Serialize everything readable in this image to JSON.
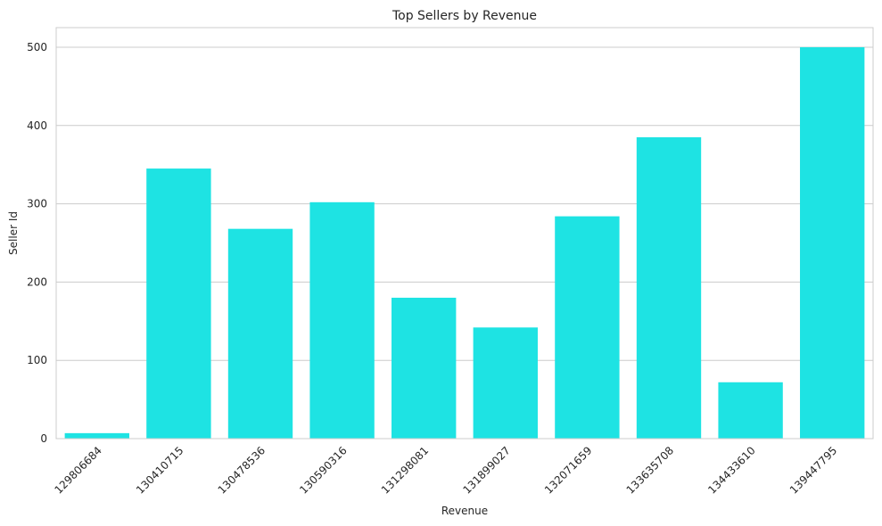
{
  "chart_data": {
    "type": "bar",
    "title": "Top Sellers by Revenue",
    "xlabel": "Revenue",
    "ylabel": "Seller Id",
    "categories": [
      "129806684",
      "130410715",
      "130478536",
      "130590316",
      "131298081",
      "131899027",
      "132071659",
      "133635708",
      "134433610",
      "139447795"
    ],
    "values": [
      7,
      345,
      268,
      302,
      180,
      142,
      284,
      385,
      72,
      500
    ],
    "ylim": [
      0,
      525
    ],
    "yticks": [
      0,
      100,
      200,
      300,
      400,
      500
    ],
    "grid": "y",
    "colors": {
      "bar": "#1ee3e3"
    }
  }
}
